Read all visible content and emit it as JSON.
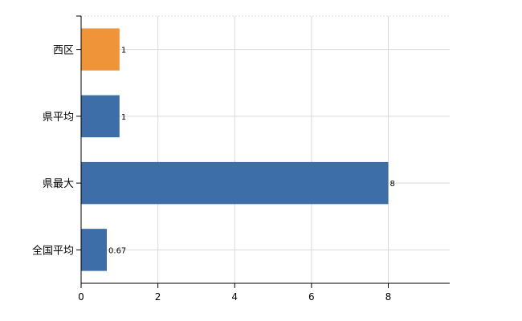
{
  "chart_data": {
    "type": "bar",
    "orientation": "horizontal",
    "categories": [
      "西区",
      "県平均",
      "県最大",
      "全国平均"
    ],
    "values": [
      1,
      1,
      8,
      0.67
    ],
    "value_labels": [
      "1",
      "1",
      "8",
      "0.67"
    ],
    "xlim": [
      0,
      9.6
    ],
    "xticks": [
      0,
      2,
      4,
      6,
      8
    ],
    "xtick_labels": [
      "0",
      "2",
      "4",
      "6",
      "8"
    ],
    "grid": true,
    "colors": {
      "highlight": "#f0943a",
      "default": "#3d6ea8",
      "grid": "#d9d9d9",
      "axis": "#000000"
    },
    "highlight_index": 0
  }
}
